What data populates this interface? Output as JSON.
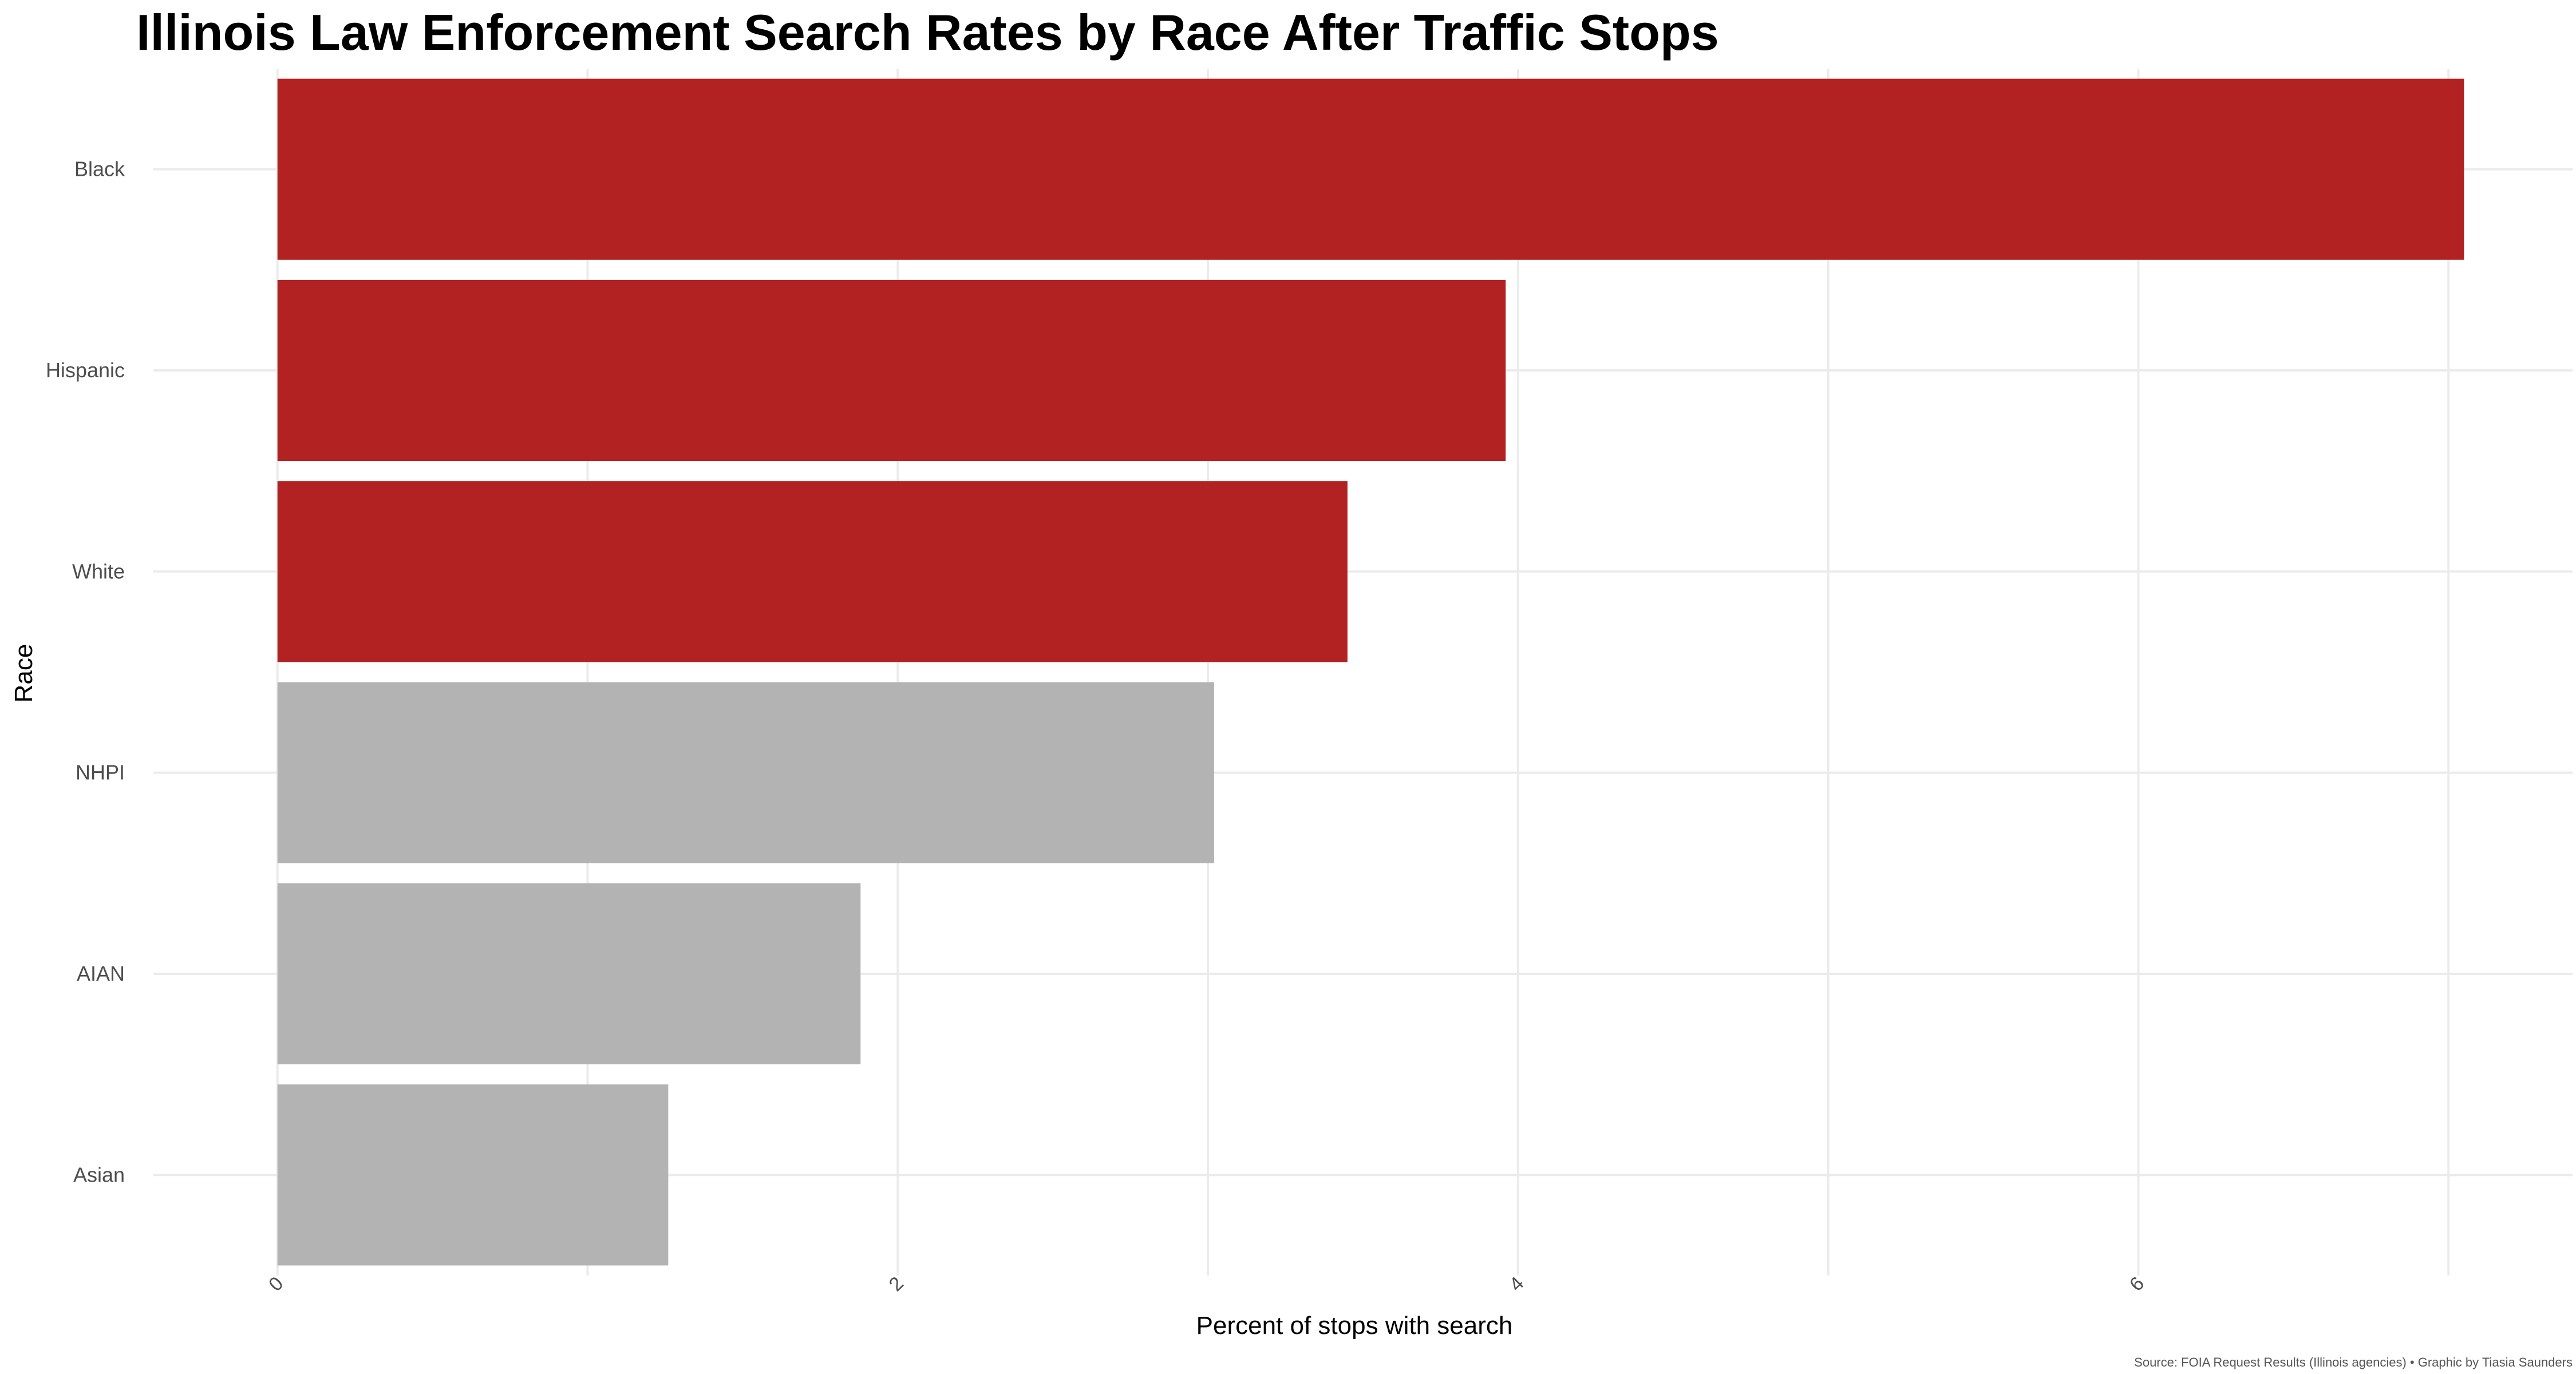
{
  "chart_data": {
    "type": "bar",
    "orientation": "horizontal",
    "title": "Illinois Law Enforcement Search Rates by Race After Traffic Stops",
    "xlabel": "Percent of stops with search",
    "ylabel": "Race",
    "caption": "Source: FOIA Request Results (Illinois agencies) • Graphic by Tiasia Saunders",
    "categories": [
      "Black",
      "Hispanic",
      "White",
      "NHPI",
      "AIAN",
      "Asian"
    ],
    "values": [
      7.05,
      3.96,
      3.45,
      3.02,
      1.88,
      1.26
    ],
    "highlight": [
      true,
      true,
      true,
      false,
      false,
      false
    ],
    "xticks": [
      "0",
      "2",
      "4",
      "6"
    ],
    "xlim": [
      -0.4,
      7.4
    ],
    "grid": true,
    "legend": "none",
    "colors": {
      "highlight": "#b22222",
      "other": "#b3b3b3",
      "grid": "#ebebeb"
    }
  }
}
